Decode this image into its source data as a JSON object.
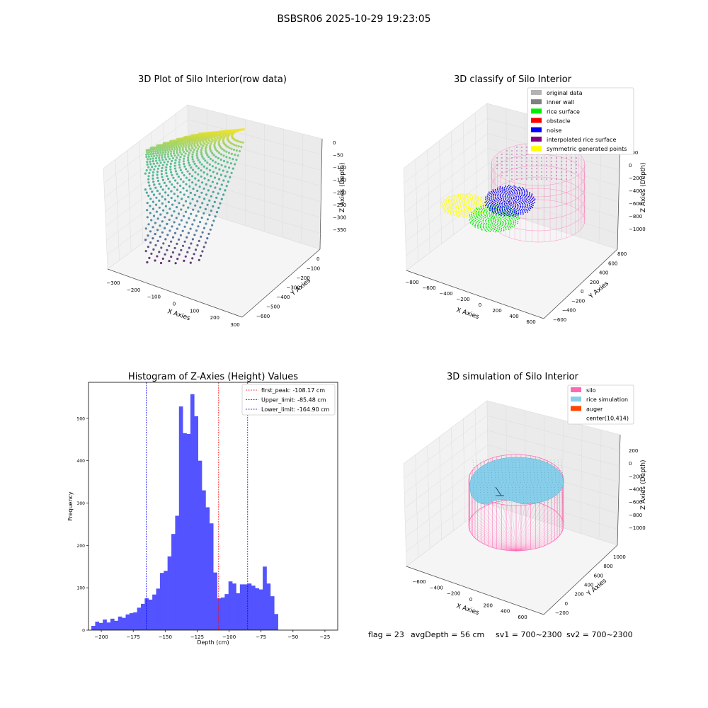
{
  "suptitle": "BSBSR06 2025-10-29 19:23:05",
  "panels": {
    "raw": {
      "title": "3D Plot of Silo Interior(row data)",
      "xlabel": "X Axies",
      "ylabel": "Y Axies",
      "zlabel": "Z Axies (Depth)",
      "xticks": [
        "−300",
        "−200",
        "−100",
        "0",
        "100",
        "200",
        "300"
      ],
      "yticks": [
        "0",
        "−100",
        "−200",
        "−300",
        "−400",
        "−500",
        "−600"
      ],
      "zticks": [
        "0",
        "−50",
        "−100",
        "−150",
        "−200",
        "−250",
        "−300",
        "−350"
      ],
      "colormap": [
        "#440154",
        "#31688e",
        "#21918c",
        "#35b779",
        "#fde725"
      ]
    },
    "classify": {
      "title": "3D classify of Silo Interior",
      "xlabel": "X Axies",
      "ylabel": "Y Axies",
      "zlabel": "Z Axies (Depth)",
      "xticks": [
        "−800",
        "−600",
        "−400",
        "−200",
        "0",
        "200",
        "400",
        "600"
      ],
      "yticks": [
        "800",
        "600",
        "400",
        "200",
        "0",
        "−200",
        "−400",
        "−600"
      ],
      "zticks": [
        "200",
        "0",
        "−200",
        "−400",
        "−600",
        "−800",
        "−1000"
      ],
      "legend": [
        {
          "label": "original data",
          "color": "#b3b3b3"
        },
        {
          "label": "inner wall",
          "color": "#808080"
        },
        {
          "label": "rice surface",
          "color": "#00ee00"
        },
        {
          "label": "obstacle",
          "color": "#ff0000"
        },
        {
          "label": "noise",
          "color": "#0000ff"
        },
        {
          "label": "interpolated rice surface",
          "color": "#800080"
        },
        {
          "label": "symmetric generated points",
          "color": "#ffff00"
        }
      ],
      "wall_color": "#ff69b4"
    },
    "histogram": {
      "title": "Histogram of Z-Axies (Height) Values",
      "xlabel": "Depth (cm)",
      "ylabel": "Frequency",
      "bar_color": "#5050ff",
      "legend": [
        {
          "label": "first_peak: -108.17 cm",
          "color": "#ff0000"
        },
        {
          "label": "Upper_limit: -85.48 cm",
          "color": "#0000ff"
        },
        {
          "label": "Lower_limit: -164.90 cm",
          "color": "#0000ff"
        }
      ]
    },
    "simulation": {
      "title": "3D simulation of Silo Interior",
      "xlabel": "X Axies",
      "ylabel": "Y Axies",
      "zlabel": "Z Axies (Depth)",
      "xticks": [
        "−600",
        "−400",
        "−200",
        "0",
        "200",
        "400",
        "600"
      ],
      "yticks": [
        "1000",
        "800",
        "600",
        "400",
        "200",
        "0",
        "−200"
      ],
      "zticks": [
        "200",
        "0",
        "−200",
        "−400",
        "−600",
        "−800",
        "−1000"
      ],
      "legend": [
        {
          "label": "silo",
          "color": "#ff69b4"
        },
        {
          "label": "rice simulation",
          "color": "#87ceeb"
        },
        {
          "label": "auger",
          "color": "#ff4500"
        },
        {
          "label": "center(10,414)",
          "color": ""
        }
      ]
    }
  },
  "footer": {
    "flag": "flag = 23",
    "avg_depth": "avgDepth = 56 cm",
    "sv1": "sv1 = 700~2300",
    "sv2": "sv2 = 700~2300"
  },
  "chart_data": [
    {
      "type": "bar",
      "title": "Histogram of Z-Axies (Height) Values",
      "xlabel": "Depth (cm)",
      "ylabel": "Frequency",
      "xlim": [
        -210,
        -15
      ],
      "ylim": [
        0,
        585
      ],
      "xticks": [
        -200,
        -175,
        -150,
        -125,
        -100,
        -75,
        -50,
        -25
      ],
      "yticks": [
        0,
        100,
        200,
        300,
        400,
        500
      ],
      "bin_width": 2.98,
      "bin_start": -207.75,
      "values": [
        10,
        20,
        17,
        25,
        18,
        27,
        22,
        32,
        29,
        37,
        40,
        42,
        53,
        62,
        75,
        72,
        84,
        98,
        135,
        140,
        174,
        227,
        270,
        528,
        465,
        463,
        557,
        505,
        400,
        330,
        290,
        252,
        136,
        75,
        77,
        85,
        115,
        110,
        87,
        108,
        108,
        110,
        105,
        99,
        96,
        150,
        110,
        80,
        38
      ],
      "vlines": [
        {
          "label": "first_peak: -108.17 cm",
          "x": -108.17,
          "color": "#ff0000"
        },
        {
          "label": "Upper_limit: -85.48 cm",
          "x": -85.48,
          "color": "#0000ff"
        },
        {
          "label": "Lower_limit: -164.90 cm",
          "x": -164.9,
          "color": "#0000ff"
        }
      ],
      "legend_position": "upper-right",
      "grid": false
    }
  ]
}
